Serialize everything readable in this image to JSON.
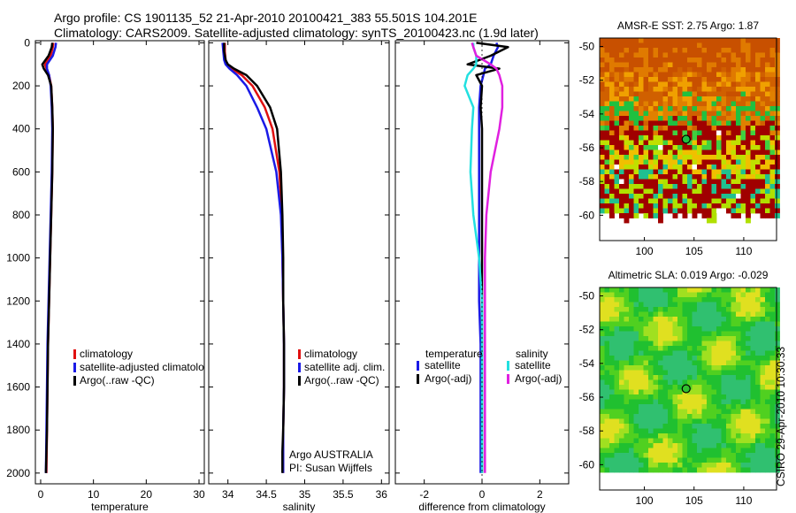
{
  "header": {
    "line1": "Argo profile: CS 1901135_52 21-Apr-2010 20100421_383 55.501S 104.201E",
    "line2": "Climatology: CARS2009. Satellite-adjusted climatology: synTS_20100423.nc (1.9d later)"
  },
  "side_caption": "CSIRO 29-Apr-2010 10:30:33",
  "colors": {
    "climatology": "#e01010",
    "satellite": "#1a1ae6",
    "argo": "#000000",
    "sat_sal": "#22e0e0",
    "argo_sal": "#e020e0"
  },
  "chart_data": [
    {
      "id": "temperature",
      "type": "line",
      "xlabel": "temperature",
      "xlim": [
        -1,
        31
      ],
      "ylim": [
        2050,
        -10
      ],
      "xticks": [
        0,
        10,
        20,
        30
      ],
      "yticks": [
        0,
        200,
        400,
        600,
        800,
        1000,
        1200,
        1400,
        1600,
        1800,
        2000
      ],
      "legend": [
        "climatology",
        "satellite-adjusted climatology",
        "Argo(..raw -QC)"
      ],
      "series": [
        {
          "name": "climatology",
          "color": "#e01010",
          "x": [
            2.4,
            2.3,
            1.9,
            0.8,
            1.1,
            1.6,
            2.0,
            2.2,
            2.3,
            2.2,
            2.0,
            1.8,
            1.6,
            1.4,
            1.3,
            1.2,
            1.1
          ],
          "depth": [
            0,
            20,
            60,
            100,
            120,
            150,
            200,
            300,
            400,
            600,
            800,
            1000,
            1200,
            1400,
            1600,
            1800,
            2000
          ]
        },
        {
          "name": "satellite-adjusted climatology",
          "color": "#1a1ae6",
          "x": [
            2.9,
            2.8,
            2.3,
            1.2,
            1.2,
            1.6,
            1.9,
            2.1,
            2.2,
            2.1,
            1.9,
            1.7,
            1.5,
            1.3,
            1.2,
            1.1,
            1.0
          ],
          "depth": [
            0,
            20,
            60,
            100,
            120,
            150,
            200,
            300,
            400,
            600,
            800,
            1000,
            1200,
            1400,
            1600,
            1800,
            2000
          ]
        },
        {
          "name": "Argo(..raw -QC)",
          "color": "#000000",
          "x": [
            2.2,
            2.1,
            1.5,
            0.3,
            0.6,
            1.4,
            2.0,
            2.2,
            2.3,
            2.2,
            2.0,
            1.8,
            1.6,
            1.4,
            1.3,
            1.2,
            1.0
          ],
          "depth": [
            0,
            20,
            60,
            100,
            120,
            150,
            200,
            300,
            400,
            600,
            800,
            1000,
            1200,
            1400,
            1600,
            1800,
            2000
          ]
        }
      ]
    },
    {
      "id": "salinity",
      "type": "line",
      "xlabel": "salinity",
      "xlim": [
        33.75,
        36.1
      ],
      "ylim": [
        2050,
        -10
      ],
      "xticks": [
        34,
        34.5,
        35,
        35.5,
        36
      ],
      "xticklabels": [
        "34",
        "34.5",
        "35",
        "35.5",
        "36"
      ],
      "legend": [
        "climatology",
        "satellite adj. clim.",
        "Argo(..raw -QC)"
      ],
      "note": [
        "Argo AUSTRALIA",
        "PI: Susan Wijffels"
      ],
      "series": [
        {
          "name": "climatology",
          "color": "#e01010",
          "x": [
            33.96,
            33.96,
            33.97,
            33.99,
            34.05,
            34.18,
            34.32,
            34.48,
            34.58,
            34.67,
            34.7,
            34.71,
            34.72,
            34.73,
            34.73,
            34.72,
            34.72,
            34.72
          ],
          "depth": [
            0,
            40,
            80,
            100,
            120,
            150,
            200,
            300,
            400,
            600,
            800,
            1000,
            1200,
            1400,
            1600,
            1800,
            1900,
            2000
          ]
        },
        {
          "name": "satellite adj. clim.",
          "color": "#1a1ae6",
          "x": [
            33.93,
            33.94,
            33.95,
            33.97,
            34.02,
            34.12,
            34.24,
            34.38,
            34.5,
            34.63,
            34.69,
            34.71,
            34.72,
            34.73,
            34.73,
            34.72,
            34.72,
            34.72
          ],
          "depth": [
            0,
            40,
            80,
            100,
            120,
            150,
            200,
            300,
            400,
            600,
            800,
            1000,
            1200,
            1400,
            1600,
            1800,
            1900,
            2000
          ]
        },
        {
          "name": "Argo(..raw -QC)",
          "color": "#000000",
          "x": [
            33.95,
            33.95,
            33.97,
            34.0,
            34.08,
            34.24,
            34.38,
            34.55,
            34.64,
            34.69,
            34.71,
            34.72,
            34.72,
            34.73,
            34.73,
            34.72,
            34.71,
            34.71
          ],
          "depth": [
            0,
            40,
            80,
            100,
            120,
            150,
            200,
            300,
            400,
            600,
            800,
            1000,
            1200,
            1400,
            1600,
            1800,
            1900,
            2000
          ]
        }
      ]
    },
    {
      "id": "difference",
      "type": "line",
      "xlabel": "difference from climatology",
      "xlim": [
        -3,
        3
      ],
      "ylim": [
        2050,
        -10
      ],
      "xticks": [
        -2,
        0,
        2
      ],
      "legend_groups": [
        {
          "title": "temperature",
          "items": [
            "satellite",
            "Argo(-adj)"
          ]
        },
        {
          "title": "salinity",
          "items": [
            "satellite",
            "Argo(-adj)"
          ]
        }
      ],
      "series": [
        {
          "name": "temperature satellite",
          "color": "#1a1ae6",
          "x": [
            0.5,
            0.55,
            0.4,
            0.3,
            0.1,
            0.05,
            -0.05,
            -0.1,
            -0.1,
            -0.1,
            -0.1,
            -0.1,
            -0.1,
            -0.05,
            -0.05,
            -0.05,
            -0.05
          ],
          "depth": [
            0,
            20,
            60,
            100,
            120,
            150,
            200,
            300,
            400,
            600,
            800,
            1000,
            1200,
            1400,
            1600,
            1800,
            2000
          ]
        },
        {
          "name": "temperature Argo(-adj)",
          "color": "#000000",
          "x": [
            -0.2,
            0.9,
            0.3,
            -0.5,
            0.6,
            -0.2,
            0.0,
            -0.05,
            0.0,
            0.0,
            0.0,
            0.0,
            0.0,
            0.0,
            0.0,
            0.0,
            0.0
          ],
          "depth": [
            0,
            20,
            60,
            100,
            120,
            150,
            200,
            300,
            400,
            600,
            800,
            1000,
            1200,
            1400,
            1600,
            1800,
            2000
          ]
        },
        {
          "name": "salinity satellite",
          "color": "#22e0e0",
          "x": [
            -0.3,
            -0.3,
            -0.2,
            -0.2,
            -0.3,
            -0.5,
            -0.6,
            -0.3,
            -0.35,
            -0.4,
            -0.3,
            -0.1,
            0.0,
            0.0,
            0.0,
            0.0,
            0.0
          ],
          "depth": [
            0,
            20,
            60,
            100,
            120,
            150,
            200,
            300,
            400,
            600,
            800,
            1000,
            1200,
            1400,
            1600,
            1800,
            2000
          ]
        },
        {
          "name": "salinity Argo(-adj)",
          "color": "#e020e0",
          "x": [
            -0.35,
            -0.3,
            -0.2,
            0.3,
            0.5,
            0.6,
            0.7,
            0.7,
            0.6,
            0.3,
            0.15,
            0.1,
            0.1,
            0.1,
            0.1,
            0.1,
            0.1
          ],
          "depth": [
            0,
            20,
            60,
            100,
            120,
            150,
            200,
            300,
            400,
            600,
            800,
            1000,
            1200,
            1400,
            1600,
            1800,
            2000
          ]
        }
      ]
    },
    {
      "id": "sst_map",
      "type": "heatmap",
      "title": "AMSR-E SST: 2.75 Argo: 1.87",
      "xlim": [
        95.5,
        113.3
      ],
      "ylim": [
        -61.5,
        -49.5
      ],
      "xticks": [
        100,
        105,
        110
      ],
      "yticks": [
        -50,
        -52,
        -54,
        -56,
        -58,
        -60
      ],
      "marker": {
        "lon": 104.201,
        "lat": -55.501
      }
    },
    {
      "id": "sla_map",
      "type": "heatmap",
      "title": "Altimetric SLA: 0.019 Argo: -0.029",
      "xlim": [
        95.5,
        113.3
      ],
      "ylim": [
        -61.5,
        -49.5
      ],
      "xticks": [
        100,
        105,
        110
      ],
      "yticks": [
        -50,
        -52,
        -54,
        -56,
        -58,
        -60
      ],
      "marker": {
        "lon": 104.201,
        "lat": -55.501
      }
    }
  ]
}
